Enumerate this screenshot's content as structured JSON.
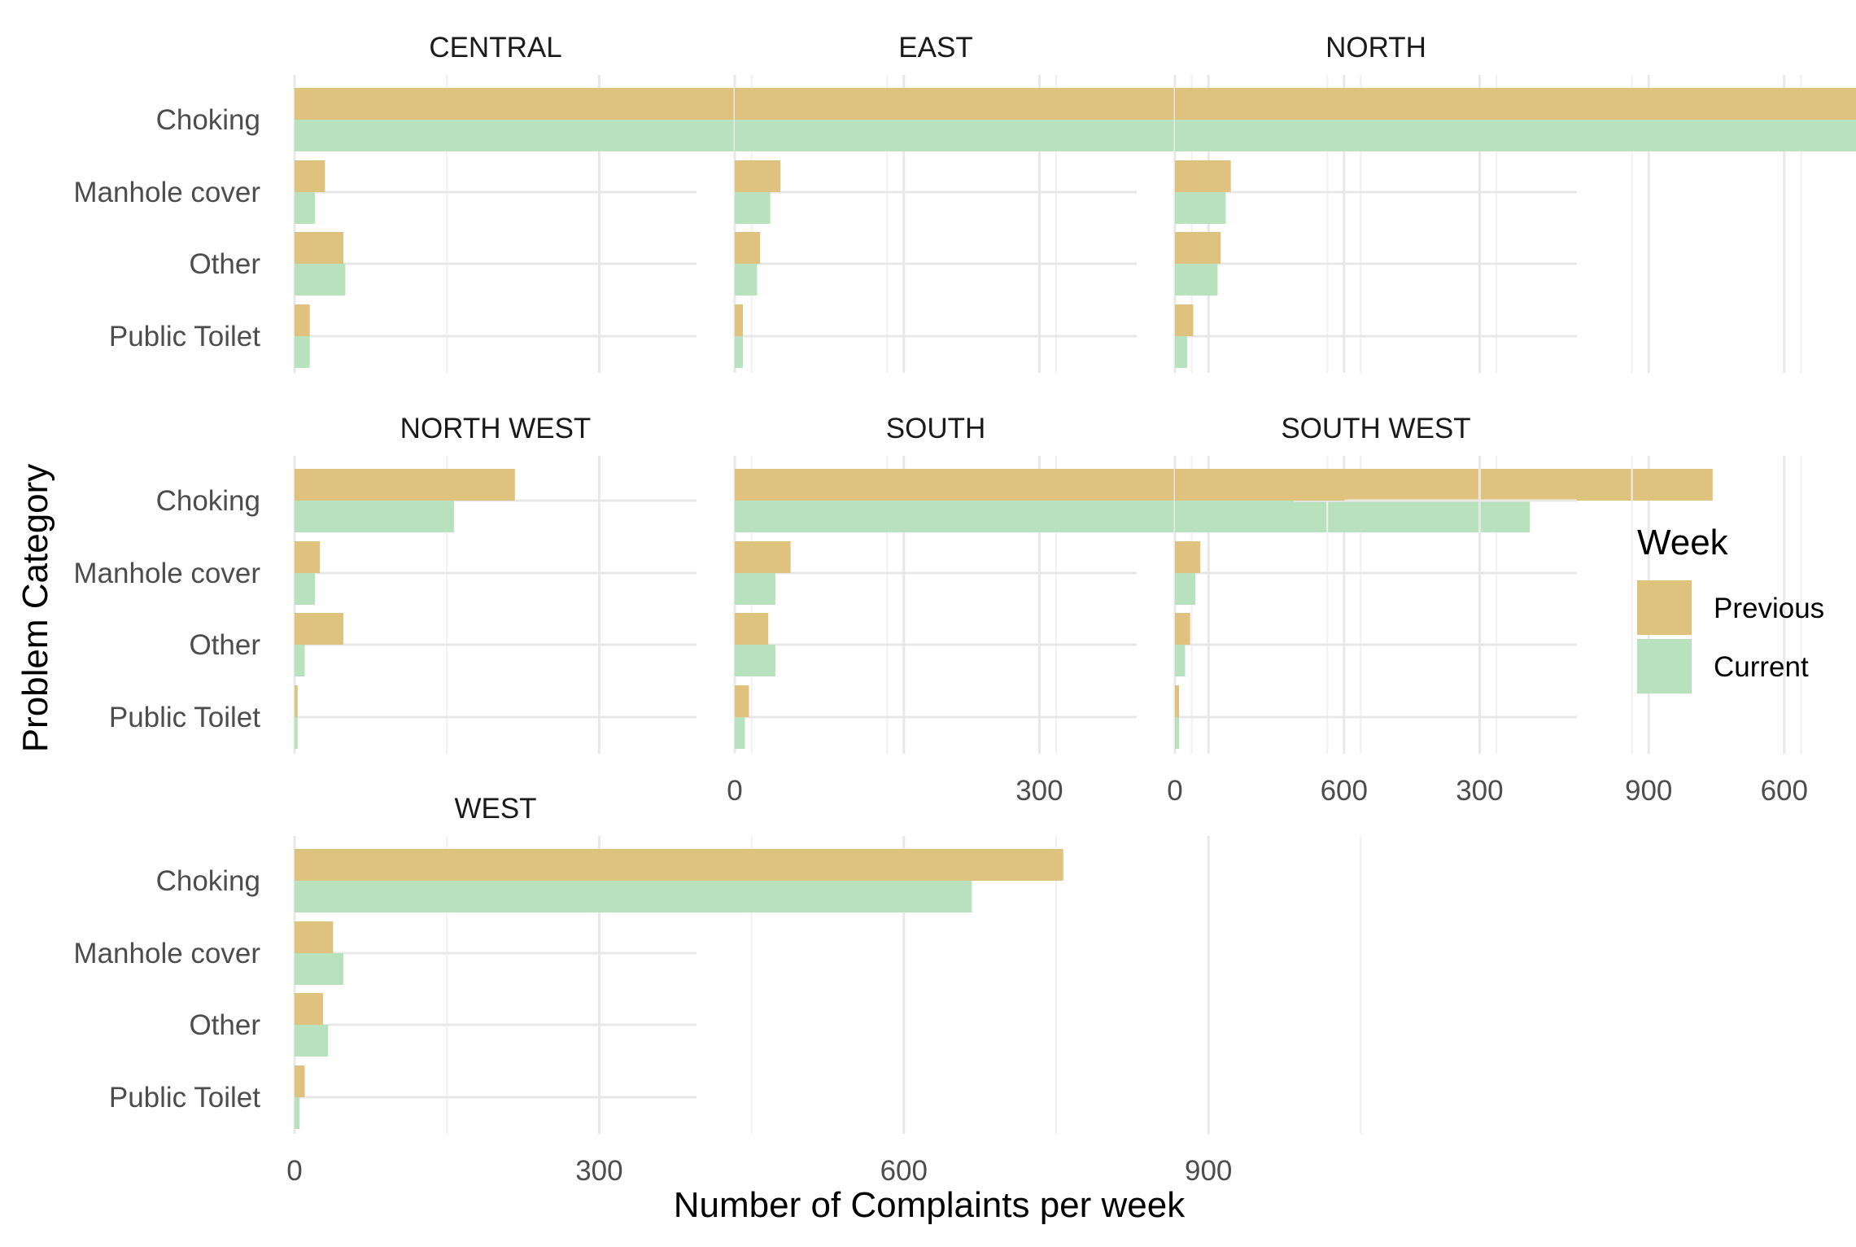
{
  "chart_data": {
    "type": "bar",
    "orientation": "horizontal",
    "facet_layout": "3 columns",
    "xlabel": "Number of Complaints per week",
    "ylabel": "Problem Category",
    "xlim": [
      0,
      1150
    ],
    "xticks": [
      0,
      300,
      600,
      900
    ],
    "grid": true,
    "categories": [
      "Choking",
      "Manhole cover",
      "Other",
      "Public Toilet"
    ],
    "legend": {
      "title": "Week",
      "placement": "right",
      "entries": [
        {
          "name": "Previous",
          "color": "#dfc27d"
        },
        {
          "name": "Current",
          "color": "#b8e2bd"
        }
      ]
    },
    "facets": [
      {
        "title": "CENTRAL",
        "series": [
          {
            "name": "Previous",
            "values": [
              923,
              30,
              48,
              15
            ]
          },
          {
            "name": "Current",
            "values": [
              923,
              20,
              50,
              15
            ]
          }
        ]
      },
      {
        "title": "EAST",
        "series": [
          {
            "name": "Previous",
            "values": [
              537,
              45,
              25,
              8
            ]
          },
          {
            "name": "Current",
            "values": [
              490,
              35,
              22,
              8
            ]
          }
        ]
      },
      {
        "title": "NORTH",
        "series": [
          {
            "name": "Previous",
            "values": [
              1130,
              55,
              45,
              18
            ]
          },
          {
            "name": "Current",
            "values": [
              1027,
              50,
              42,
              12
            ]
          }
        ]
      },
      {
        "title": "NORTH WEST",
        "series": [
          {
            "name": "Previous",
            "values": [
              217,
              25,
              48,
              3
            ]
          },
          {
            "name": "Current",
            "values": [
              157,
              20,
              10,
              3
            ]
          }
        ]
      },
      {
        "title": "SOUTH",
        "series": [
          {
            "name": "Previous",
            "values": [
              963,
              55,
              33,
              14
            ]
          },
          {
            "name": "Current",
            "values": [
              783,
              40,
              40,
              10
            ]
          }
        ]
      },
      {
        "title": "SOUTH WEST",
        "series": [
          {
            "name": "Previous",
            "values": [
              167,
              25,
              15,
              4
            ]
          },
          {
            "name": "Current",
            "values": [
              117,
              20,
              10,
              4
            ]
          }
        ]
      },
      {
        "title": "WEST",
        "series": [
          {
            "name": "Previous",
            "values": [
              757,
              38,
              28,
              10
            ]
          },
          {
            "name": "Current",
            "values": [
              667,
              48,
              33,
              5
            ]
          }
        ]
      }
    ]
  }
}
